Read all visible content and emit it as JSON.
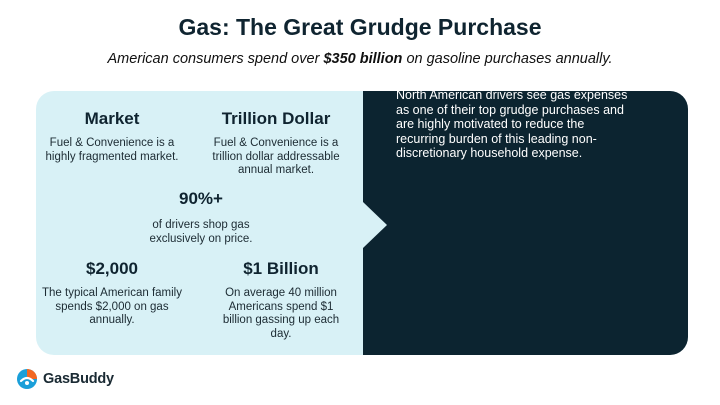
{
  "header": {
    "title": "Gas: The Great Grudge Purchase",
    "subtitle_pre": "American consumers spend over ",
    "subtitle_bold": "$350 billion",
    "subtitle_post": " on gasoline purchases annually."
  },
  "stats": [
    {
      "heading": "Market",
      "text": "Fuel & Convenience is a highly fragmented market."
    },
    {
      "heading": "Trillion Dollar",
      "text": "Fuel & Convenience is a trillion dollar addressable annual market."
    },
    {
      "heading": "90%+",
      "text": "of drivers shop gas exclusively on price."
    },
    {
      "heading": "$2,000",
      "text": "The typical American family spends $2,000 on gas annually."
    },
    {
      "heading": "$1 Billion",
      "text": "On average 40 million Americans spend $1 billion gassing up each day."
    }
  ],
  "right_panel": {
    "text": "North American drivers see gas expenses as one of their top grudge purchases and are highly motivated to reduce the recurring burden of this leading non-discretionary household expense."
  },
  "logo": {
    "text": "GasBuddy",
    "icon": "gasbuddy-logo-icon"
  },
  "colors": {
    "panel_light": "#d8f1f6",
    "panel_dark": "#0c2430",
    "logo_orange": "#f26722",
    "logo_blue": "#1a9fd9"
  }
}
